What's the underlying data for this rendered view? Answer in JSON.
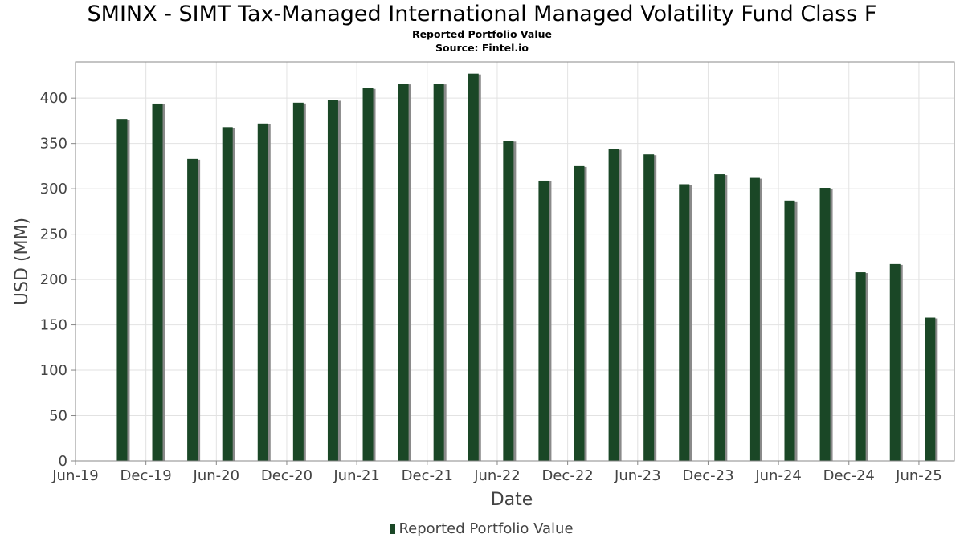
{
  "title": "SMINX - SIMT Tax-Managed International Managed Volatility Fund Class F",
  "subtitle": "Reported Portfolio Value",
  "source": "Source: Fintel.io",
  "colors": {
    "bar": "#1a4726",
    "bar_shadow": "#8a8a8a",
    "grid": "#e2e2e2",
    "frame": "#888888",
    "text": "#444444"
  },
  "chart_data": {
    "type": "bar",
    "title": "SMINX - SIMT Tax-Managed International Managed Volatility Fund Class F",
    "subtitle": "Reported Portfolio Value",
    "xlabel": "Date",
    "ylabel": "USD (MM)",
    "ylim": [
      0,
      440
    ],
    "yticks": [
      0,
      50,
      100,
      150,
      200,
      250,
      300,
      350,
      400
    ],
    "xticks": [
      "Jun-19",
      "Dec-19",
      "Jun-20",
      "Dec-20",
      "Jun-21",
      "Dec-21",
      "Jun-22",
      "Dec-22",
      "Jun-23",
      "Dec-23",
      "Jun-24",
      "Dec-24",
      "Jun-25"
    ],
    "xlim": [
      "2019-06-01",
      "2025-09-01"
    ],
    "grid": true,
    "legend_position": "bottom-center",
    "series": [
      {
        "name": "Reported Portfolio Value",
        "x": [
          "2019-09-30",
          "2019-12-31",
          "2020-03-31",
          "2020-06-30",
          "2020-09-30",
          "2020-12-31",
          "2021-03-31",
          "2021-06-30",
          "2021-09-30",
          "2021-12-31",
          "2022-03-31",
          "2022-06-30",
          "2022-09-30",
          "2022-12-31",
          "2023-03-31",
          "2023-06-30",
          "2023-09-30",
          "2023-12-31",
          "2024-03-31",
          "2024-06-30",
          "2024-09-30",
          "2024-12-31",
          "2025-03-31",
          "2025-06-30"
        ],
        "values": [
          377,
          394,
          333,
          368,
          372,
          395,
          398,
          411,
          416,
          416,
          427,
          353,
          309,
          325,
          344,
          338,
          305,
          316,
          312,
          287,
          301,
          208,
          217,
          158
        ]
      }
    ]
  }
}
